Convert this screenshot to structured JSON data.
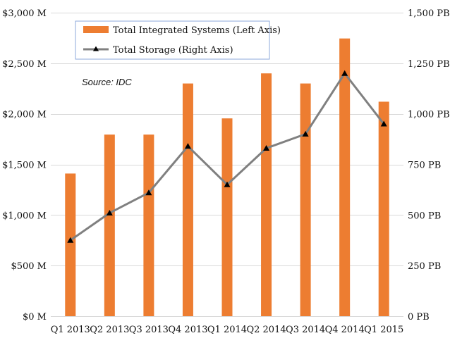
{
  "chart_data": {
    "type": "bar",
    "categories": [
      "Q1 2013",
      "Q2 2013",
      "Q3 2013",
      "Q4 2013",
      "Q1 2014",
      "Q2 2014",
      "Q3 2014",
      "Q4 2014",
      "Q1 2015"
    ],
    "series": [
      {
        "name": "Total Integrated Systems (Left Axis)",
        "type": "bar",
        "axis": "left",
        "values": [
          1410,
          1795,
          1795,
          2300,
          1955,
          2400,
          2300,
          2745,
          2120
        ],
        "color": "#ED7D31"
      },
      {
        "name": "Total Storage (Right Axis)",
        "type": "line",
        "axis": "right",
        "values": [
          375,
          510,
          610,
          840,
          650,
          830,
          900,
          1200,
          950
        ],
        "color": "#808080",
        "marker_color": "#000000"
      }
    ],
    "left_axis": {
      "ylim": [
        0,
        3000
      ],
      "ticks": [
        0,
        500,
        1000,
        1500,
        2000,
        2500,
        3000
      ],
      "tick_labels": [
        "$0 M",
        "$500 M",
        "$1,000 M",
        "$1,500 M",
        "$2,000 M",
        "$2,500 M",
        "$3,000 M"
      ]
    },
    "right_axis": {
      "ylim": [
        0,
        1500
      ],
      "ticks": [
        0,
        250,
        500,
        750,
        1000,
        1250,
        1500
      ],
      "tick_labels": [
        "0 PB",
        "250 PB",
        "500 PB",
        "750 PB",
        "1,000 PB",
        "1,250 PB",
        "1,500 PB"
      ]
    },
    "grid": true,
    "legend_position": "top-left",
    "annotation": "Source: IDC"
  }
}
